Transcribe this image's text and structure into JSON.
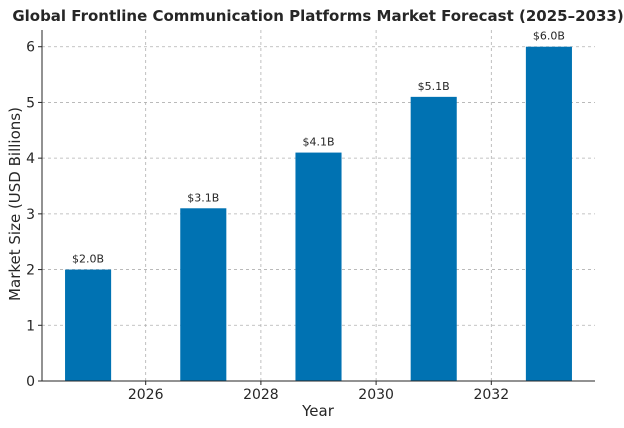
{
  "chart_data": {
    "type": "bar",
    "title": "Global Frontline Communication Platforms Market Forecast (2025–2033)",
    "xlabel": "Year",
    "ylabel": "Market Size (USD Billions)",
    "x": [
      2025,
      2027,
      2029,
      2031,
      2033
    ],
    "values": [
      2.0,
      3.1,
      4.1,
      5.1,
      6.0
    ],
    "data_labels": [
      "$2.0B",
      "$3.1B",
      "$4.1B",
      "$5.1B",
      "$6.0B"
    ],
    "xticks": [
      2026,
      2028,
      2030,
      2032
    ],
    "yticks": [
      0,
      1,
      2,
      3,
      4,
      5,
      6
    ],
    "xlim": [
      2024.2,
      2033.8
    ],
    "ylim": [
      0,
      6.3
    ],
    "bar_width_years": 0.8,
    "bar_color": "#0072b2",
    "grid": true
  }
}
